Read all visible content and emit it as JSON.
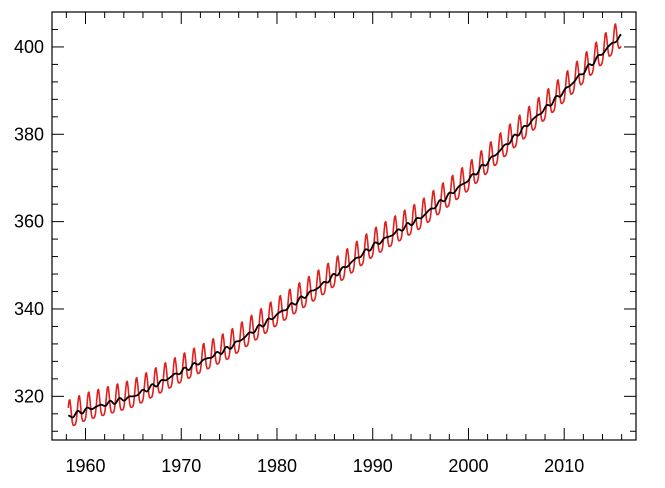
{
  "chart_data": {
    "type": "line",
    "title": "",
    "xlabel": "",
    "ylabel": "",
    "xlim": [
      1956.5,
      2017.5
    ],
    "ylim": [
      310,
      408
    ],
    "xticks": [
      1960,
      1970,
      1980,
      1990,
      2000,
      2010
    ],
    "xtick_labels": [
      "1960",
      "1970",
      "1980",
      "1990",
      "2000",
      "2010"
    ],
    "yticks": [
      320,
      340,
      360,
      380,
      400
    ],
    "ytick_labels": [
      "320",
      "340",
      "360",
      "380",
      "400"
    ],
    "grid": false,
    "legend": "none",
    "series": [
      {
        "id": "monthly",
        "color": "#e0201e",
        "style": "seasonal",
        "seasonal_amplitude": 3.2,
        "start": 1958.2,
        "end": 2016.0,
        "step": 0.0833333
      },
      {
        "id": "trend",
        "color": "#000000",
        "style": "trend",
        "start": 1958.2,
        "end": 2016.0,
        "step": 0.0833333
      }
    ],
    "trend_points": {
      "x": [
        1958.2,
        1960,
        1965,
        1970,
        1975,
        1980,
        1985,
        1990,
        1995,
        2000,
        2005,
        2010,
        2015,
        2016.0
      ],
      "y": [
        315.2,
        316.9,
        320.0,
        325.7,
        331.1,
        338.7,
        346.0,
        354.4,
        360.9,
        369.6,
        379.8,
        389.9,
        400.8,
        402.5
      ]
    }
  }
}
